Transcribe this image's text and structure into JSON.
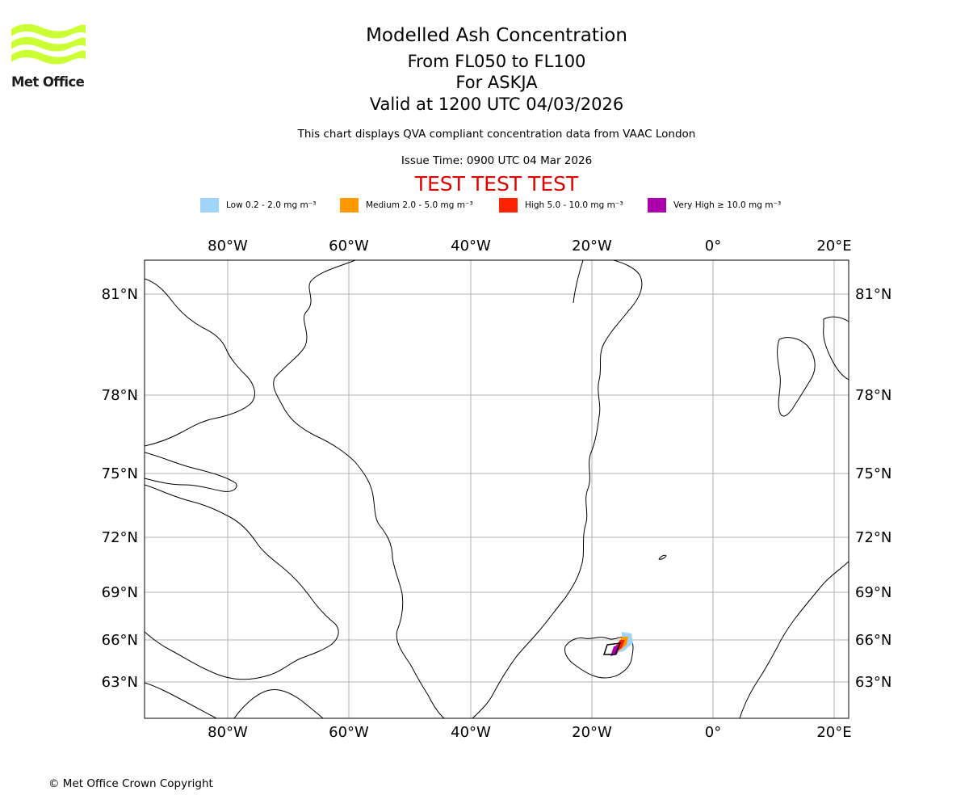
{
  "brand": {
    "name": "Met Office",
    "logo_color": "#ccff33"
  },
  "header": {
    "title": "Modelled Ash Concentration",
    "levels": "From FL050 to FL100",
    "volcano": "For ASKJA",
    "valid": "Valid at 1200 UTC 04/03/2026",
    "note": "This chart displays QVA compliant concentration data from VAAC London",
    "issue_time": "Issue Time: 0900 UTC 04 Mar 2026",
    "test_banner": "TEST TEST TEST"
  },
  "legend": [
    {
      "label": "Low 0.2 - 2.0 mg m⁻³",
      "color": "#a0d4fa"
    },
    {
      "label": "Medium 2.0 - 5.0 mg m⁻³",
      "color": "#ff9900"
    },
    {
      "label": "High 5.0 - 10.0 mg m⁻³",
      "color": "#ff2200"
    },
    {
      "label": "Very High  ≥  10.0 mg m⁻³",
      "color": "#aa00aa"
    }
  ],
  "map": {
    "lon_labels": [
      "80°W",
      "60°W",
      "40°W",
      "20°W",
      "0°",
      "20°E"
    ],
    "lat_labels": [
      "81°N",
      "78°N",
      "75°N",
      "72°N",
      "69°N",
      "66°N",
      "63°N"
    ],
    "grid": true,
    "colors": {
      "coast": "#000000",
      "grid": "#b0b0b0"
    }
  },
  "footer": {
    "copyright": "© Met Office Crown Copyright"
  }
}
